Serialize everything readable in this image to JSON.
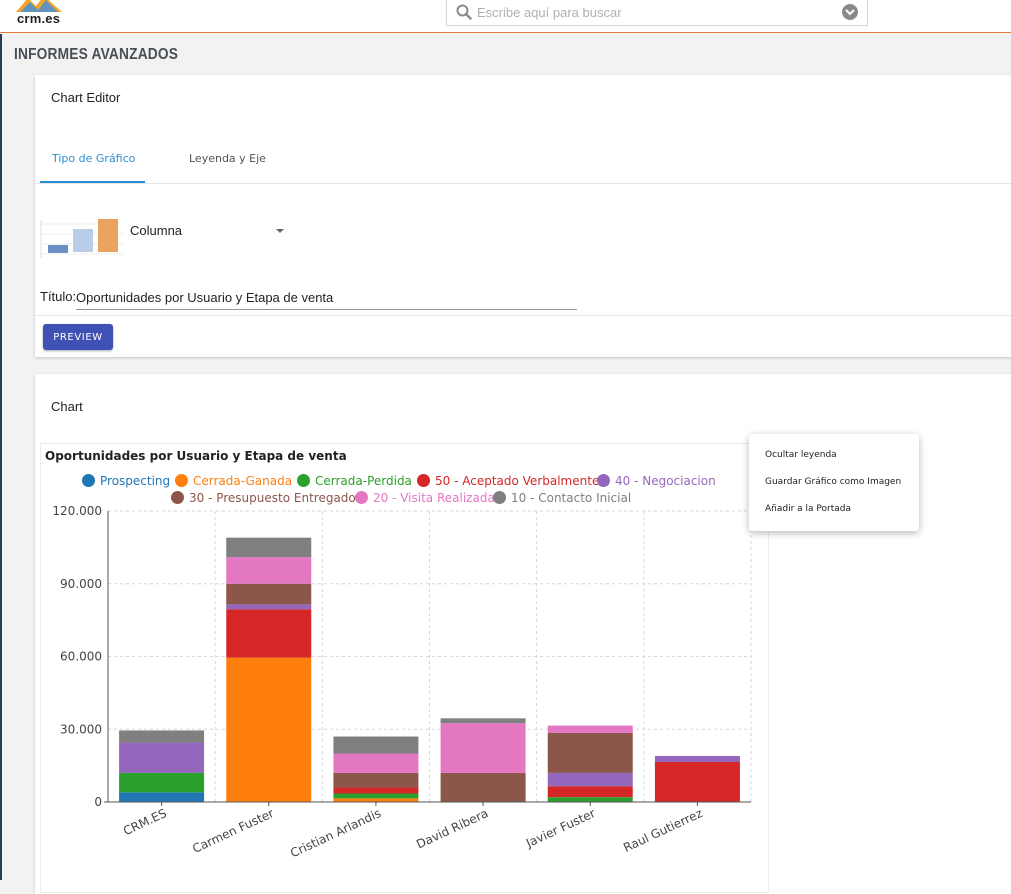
{
  "app": {
    "logo_text": "crm.es",
    "search": {
      "placeholder": "Escribe aquí para buscar"
    },
    "page_title": "INFORMES AVANZADOS"
  },
  "editor": {
    "card_title": "Chart Editor",
    "tabs": [
      {
        "label": "Tipo de Gráfico",
        "active": true
      },
      {
        "label": "Leyenda y Eje",
        "active": false
      }
    ],
    "chart_type": "Columna",
    "title_label": "Título:",
    "title_value": "Oportunidades por Usuario y Etapa de venta",
    "preview_label": "PREVIEW"
  },
  "chart_card": {
    "card_title": "Chart"
  },
  "context_menu": {
    "items": [
      "Ocultar leyenda",
      "Guardar Gráfico como Imagen",
      "Añadir a la Portada"
    ]
  },
  "colors": {
    "accent": "#2b8fd4",
    "button": "#3f51b5",
    "header_rule": "#e07a3a"
  },
  "chart_data": {
    "type": "bar",
    "stacked": true,
    "title": "Oportunidades por Usuario y Etapa de venta",
    "categories": [
      "CRM.ES",
      "Carmen Fuster",
      "Cristian Arlandis",
      "David Ribera",
      "Javier Fuster",
      "Raul Gutierrez"
    ],
    "ylim": [
      0,
      120000
    ],
    "yticks": [
      "0",
      "30.000",
      "60.000",
      "90.000",
      "120.000"
    ],
    "ytick_values": [
      0,
      30000,
      60000,
      90000,
      120000
    ],
    "grid": true,
    "legend_position": "top",
    "series": [
      {
        "name": "Prospecting",
        "color": "#1f77b4",
        "values": [
          4000,
          0,
          0,
          0,
          0,
          0
        ]
      },
      {
        "name": "Cerrada-Ganada",
        "color": "#ff7f0e",
        "values": [
          0,
          59500,
          1500,
          0,
          0,
          0
        ]
      },
      {
        "name": "Cerrada-Perdida",
        "color": "#2ca02c",
        "values": [
          8000,
          0,
          2000,
          0,
          2000,
          0
        ]
      },
      {
        "name": "50 - Aceptado Verbalmente",
        "color": "#d62728",
        "values": [
          0,
          20000,
          2500,
          0,
          4500,
          16500
        ]
      },
      {
        "name": "40 - Negociacion",
        "color": "#9467bd",
        "values": [
          12500,
          2000,
          0,
          0,
          5500,
          2500
        ]
      },
      {
        "name": "30 - Presupuesto Entregado",
        "color": "#8c564b",
        "values": [
          0,
          8500,
          6000,
          12000,
          16500,
          0
        ]
      },
      {
        "name": "20 - Visita Realizada",
        "color": "#e377c2",
        "values": [
          0,
          11000,
          8000,
          20500,
          3000,
          0
        ]
      },
      {
        "name": "10 - Contacto Inicial",
        "color": "#7f7f7f",
        "values": [
          5000,
          8000,
          7000,
          2000,
          0,
          0
        ]
      }
    ]
  }
}
